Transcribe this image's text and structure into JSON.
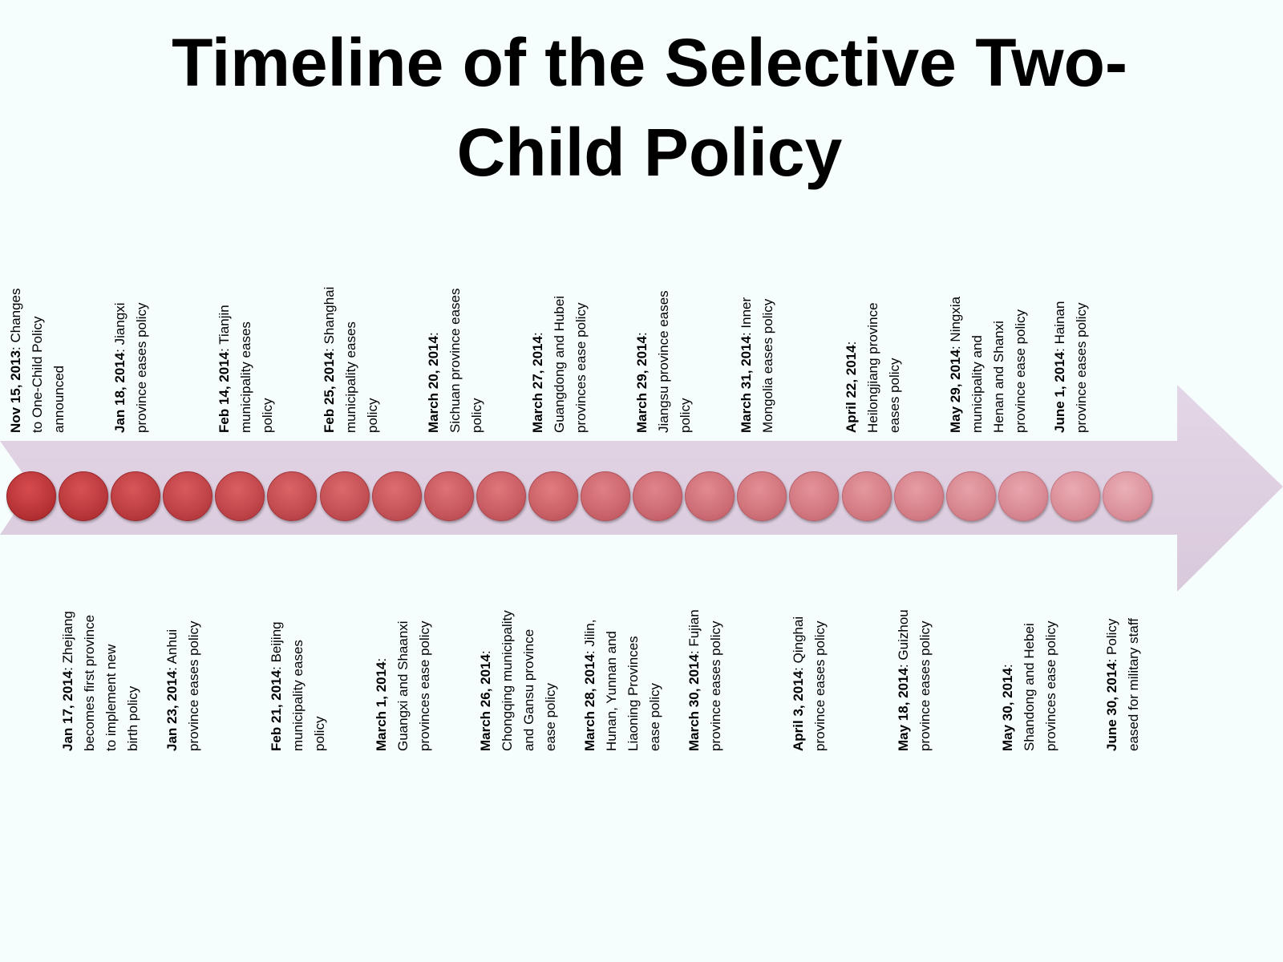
{
  "title": "Timeline of the Selective Two-Child Policy",
  "events": [
    {
      "date": "Nov 15, 2013",
      "sep": ": ",
      "text": "Changes\nto One-Child Policy\nannounced",
      "side": "top"
    },
    {
      "date": "Jan 17, 2014",
      "sep": ": ",
      "text": "Zhejiang\nbecomes first province\nto implement new\nbirth policy",
      "side": "bottom"
    },
    {
      "date": "Jan 18, 2014",
      "sep": ": ",
      "text": "Jiangxi\nprovince eases policy",
      "side": "top"
    },
    {
      "date": "Jan 23, 2014",
      "sep": ":  ",
      "text": "Anhui\nprovince eases policy",
      "side": "bottom"
    },
    {
      "date": "Feb 14, 2014",
      "sep": ": ",
      "text": "Tianjin\nmunicipality eases\npolicy",
      "side": "top"
    },
    {
      "date": "Feb 21, 2014",
      "sep": ": ",
      "text": "Beijing\nmunicipality eases\npolicy",
      "side": "bottom"
    },
    {
      "date": "Feb 25, 2014",
      "sep": ": ",
      "text": "Shanghai\nmunicipality eases\npolicy",
      "side": "top"
    },
    {
      "date": "March 1, 2014",
      "sep": ":\n",
      "text": "Guangxi  and Shaanxi\nprovinces ease policy",
      "side": "bottom"
    },
    {
      "date": "March 20, 2014",
      "sep": ":\n",
      "text": "Sichuan province eases\npolicy",
      "side": "top"
    },
    {
      "date": "March 26, 2014",
      "sep": ":\n",
      "text": "Chongqing municipality\nand Gansu province\nease policy",
      "side": "bottom"
    },
    {
      "date": "March 27, 2014",
      "sep": ":\n",
      "text": "Guangdong  and Hubei\nprovinces ease policy",
      "side": "top"
    },
    {
      "date": "March 28, 2014",
      "sep": ": ",
      "text": "Jilin,\nHunan, Yunnan and\nLiaoning Provinces\nease policy",
      "side": "bottom"
    },
    {
      "date": "March 29, 2014",
      "sep": ":\n",
      "text": "Jiangsu province eases\npolicy",
      "side": "top"
    },
    {
      "date": "March 30, 2014",
      "sep": ": ",
      "text": "Fujian\nprovince eases policy",
      "side": "bottom"
    },
    {
      "date": "March 31, 2014",
      "sep": ": ",
      "text": "Inner\nMongolia eases policy",
      "side": "top"
    },
    {
      "date": "April 3, 2014",
      "sep": ":  ",
      "text": "Qinghai\nprovince eases policy",
      "side": "bottom"
    },
    {
      "date": "April 22, 2014",
      "sep": ":\n",
      "text": "Heilongjiang province\neases policy",
      "side": "top"
    },
    {
      "date": "May 18, 2014",
      "sep": ": ",
      "text": "Guizhou\nprovince eases policy",
      "side": "bottom"
    },
    {
      "date": "May 29, 2014",
      "sep": ": ",
      "text": "Ningxia\nmunicipality and\nHenan and Shanxi\nprovince ease policy",
      "side": "top"
    },
    {
      "date": "May 30, 2014",
      "sep": ":\n",
      "text": "Shandong and Hebei\nprovinces ease policy",
      "side": "bottom"
    },
    {
      "date": "June 1, 2014",
      "sep": ": ",
      "text": "Hainan\nprovince eases policy",
      "side": "top"
    },
    {
      "date": "June 30, 2014",
      "sep": ": ",
      "text": "Policy\neased for military staff",
      "side": "bottom"
    }
  ]
}
